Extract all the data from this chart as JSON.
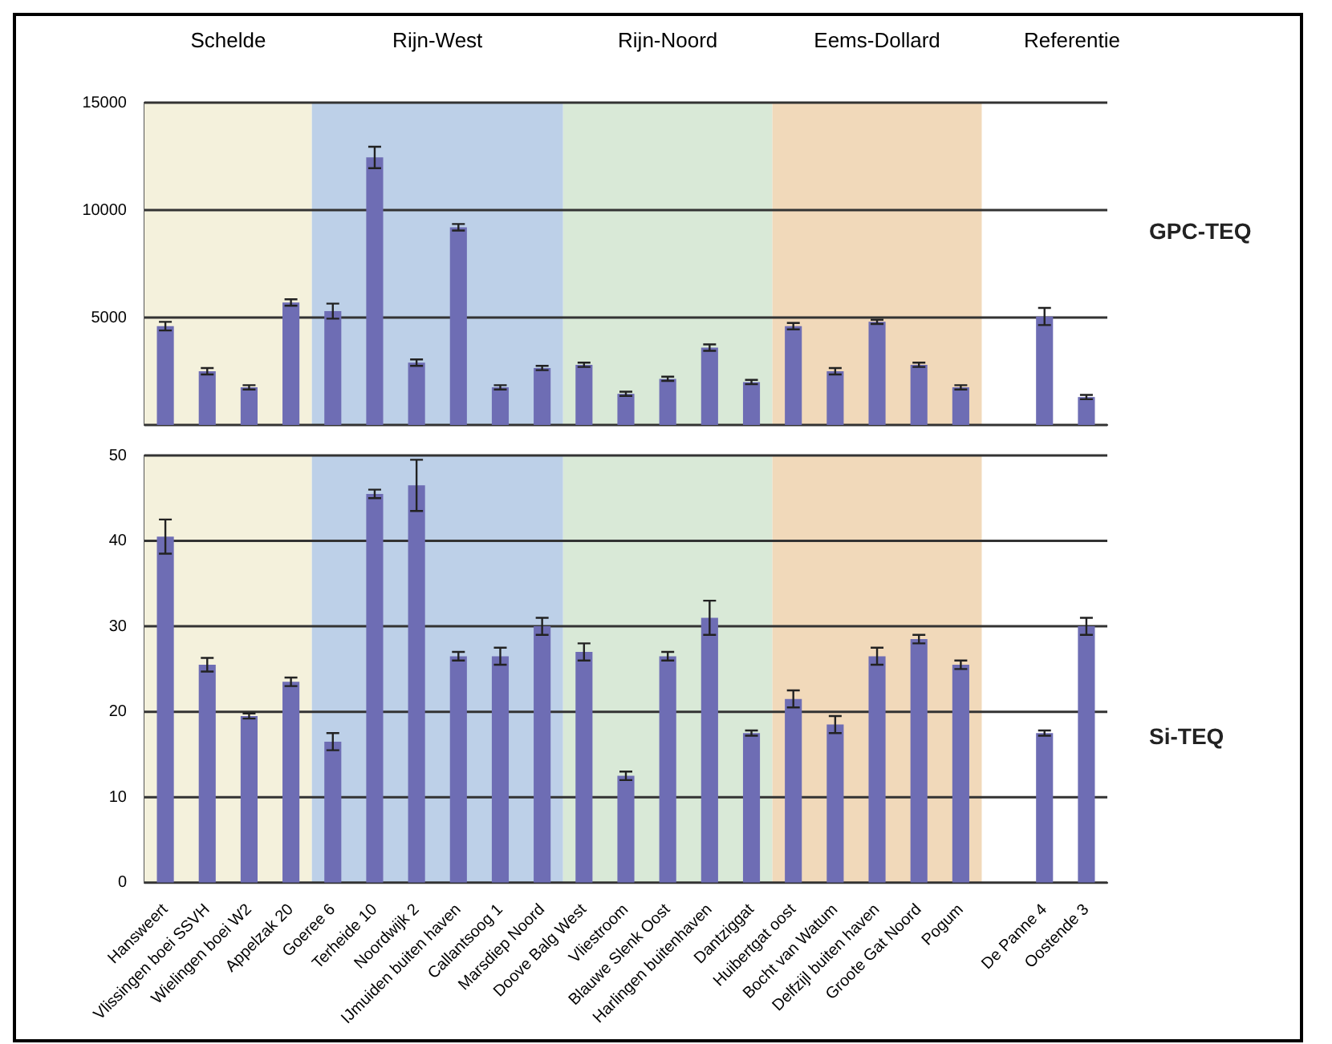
{
  "chart_data": [
    {
      "type": "bar",
      "ylabel": "GPC-TEQ",
      "categories": [
        "Hansweert",
        "Vlissingen boei SSVH",
        "Wielingen boei W2",
        "Appelzak 20",
        "Goeree 6",
        "Terheide 10",
        "Noordwijk 2",
        "IJmuiden buiten haven",
        "Callantsoog 1",
        "Marsdiep Noord",
        "Doove Balg West",
        "Vliestroom",
        "Blauwe Slenk Oost",
        "Harlingen buitenhaven",
        "Dantziggat",
        "Huibertgat oost",
        "Bocht van Watum",
        "Delfzijl buiten haven",
        "Groote Gat Noord",
        "Pogum",
        null,
        "De Panne 4",
        "Oostende 3"
      ],
      "values": [
        4600,
        2500,
        1750,
        5700,
        5300,
        12450,
        2900,
        9200,
        1750,
        2650,
        2800,
        1450,
        2150,
        3600,
        2000,
        4600,
        2500,
        4800,
        2800,
        1750,
        null,
        5050,
        1300
      ],
      "errors": [
        200,
        150,
        100,
        150,
        350,
        500,
        150,
        150,
        100,
        100,
        100,
        100,
        100,
        150,
        100,
        150,
        150,
        100,
        100,
        100,
        null,
        400,
        100
      ],
      "color": "#6e6db4",
      "ylim": [
        0,
        15000
      ],
      "yticks": [
        {
          "value": 0,
          "label": null
        },
        5000,
        10000,
        15000
      ],
      "grid": "y",
      "tick_labels": "y",
      "bands": [
        {
          "axis": "x",
          "from": "Hansweert",
          "to": "Appelzak 20",
          "label": "Schelde",
          "color": "#f4f1dc"
        },
        {
          "axis": "x",
          "from": "Goeree 6",
          "to": "Marsdiep Noord",
          "label": "Rijn-West",
          "color": "#bdd0e8"
        },
        {
          "axis": "x",
          "from": "Doove Balg West",
          "to": "Dantziggat",
          "label": "Rijn-Noord",
          "color": "#d9e9d7"
        },
        {
          "axis": "x",
          "from": "Huibertgat oost",
          "to": "Pogum",
          "label": "Eems-Dollard",
          "color": "#f1d9ba"
        }
      ],
      "annotations": [
        "Referentie"
      ]
    },
    {
      "type": "bar",
      "ylabel": "Si-TEQ",
      "categories": [
        "Hansweert",
        "Vlissingen boei SSVH",
        "Wielingen boei W2",
        "Appelzak 20",
        "Goeree 6",
        "Terheide 10",
        "Noordwijk 2",
        "IJmuiden buiten haven",
        "Callantsoog 1",
        "Marsdiep Noord",
        "Doove Balg West",
        "Vliestroom",
        "Blauwe Slenk Oost",
        "Harlingen buitenhaven",
        "Dantziggat",
        "Huibertgat oost",
        "Bocht van Watum",
        "Delfzijl buiten haven",
        "Groote Gat Noord",
        "Pogum",
        null,
        "De Panne 4",
        "Oostende 3"
      ],
      "values": [
        40.5,
        25.5,
        19.5,
        23.5,
        16.5,
        45.5,
        46.5,
        26.5,
        26.5,
        30,
        27,
        12.5,
        26.5,
        31,
        17.5,
        21.5,
        18.5,
        26.5,
        28.5,
        25.5,
        null,
        17.5,
        30
      ],
      "errors": [
        2,
        0.8,
        0.3,
        0.5,
        1,
        0.5,
        3,
        0.5,
        1,
        1,
        1,
        0.5,
        0.5,
        2,
        0.3,
        1,
        1,
        1,
        0.5,
        0.5,
        null,
        0.3,
        1
      ],
      "color": "#6e6db4",
      "ylim": [
        0,
        50
      ],
      "yticks": [
        0,
        10,
        20,
        30,
        40,
        50
      ],
      "grid": "y",
      "bands": [
        {
          "axis": "x",
          "from": "Hansweert",
          "to": "Appelzak 20",
          "color": "#f4f1dc"
        },
        {
          "axis": "x",
          "from": "Goeree 6",
          "to": "Marsdiep Noord",
          "color": "#bdd0e8"
        },
        {
          "axis": "x",
          "from": "Doove Balg West",
          "to": "Dantziggat",
          "color": "#d9e9d7"
        },
        {
          "axis": "x",
          "from": "Huibertgat oost",
          "to": "Pogum",
          "color": "#f1d9ba"
        }
      ]
    }
  ]
}
